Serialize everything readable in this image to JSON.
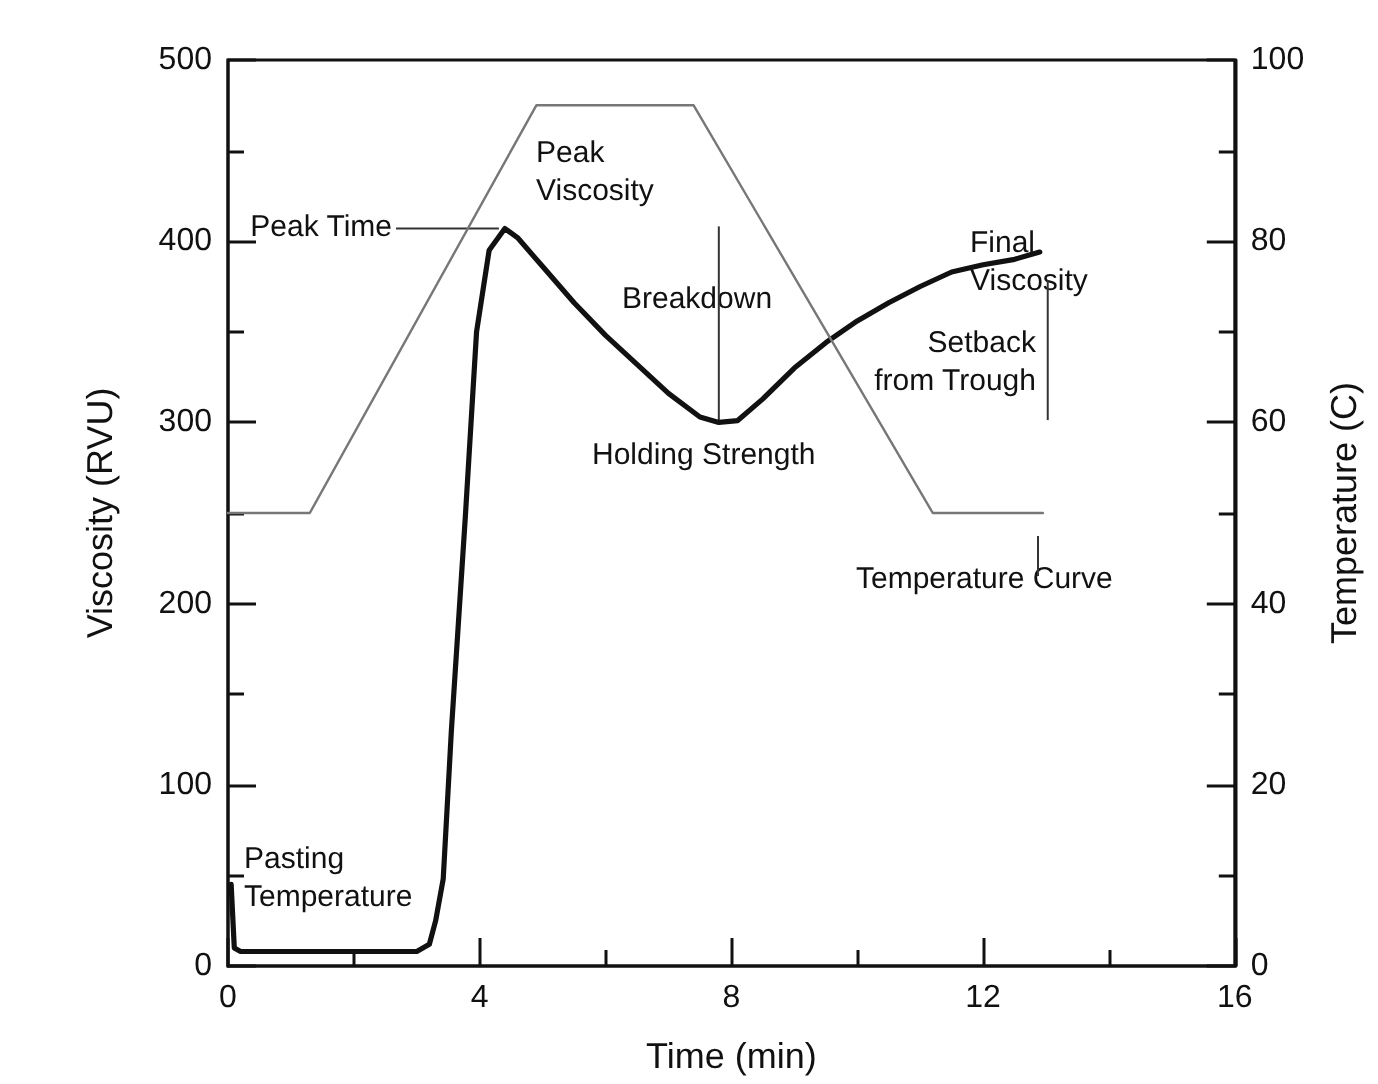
{
  "chart_data": {
    "type": "line",
    "xlabel": "Time (min)",
    "ylabel": "Viscosity (RVU)",
    "y2label": "Temperature (C)",
    "xlim": [
      0,
      16
    ],
    "xticks": [
      0,
      4,
      8,
      12,
      16
    ],
    "ylim": [
      0,
      500
    ],
    "yticks": [
      0,
      100,
      200,
      300,
      400,
      500
    ],
    "y2lim": [
      0,
      100
    ],
    "y2ticks": [
      0,
      20,
      40,
      60,
      80,
      100
    ],
    "grid": false,
    "marker": "none",
    "line_style": "solid",
    "series": [
      {
        "color": "#111111",
        "x": [
          0.05,
          0.1,
          0.2,
          1,
          2,
          3,
          3.2,
          3.3,
          3.42,
          3.55,
          3.77,
          3.95,
          4.15,
          4.4,
          4.6,
          5,
          5.5,
          6,
          6.5,
          7,
          7.5,
          7.8,
          8.1,
          8.5,
          9,
          9.5,
          10,
          10.5,
          11,
          11.5,
          12,
          12.5,
          12.9
        ],
        "values": [
          45,
          10,
          8,
          8,
          8,
          8,
          12,
          25,
          48,
          130,
          247,
          350,
          395,
          407,
          402,
          386,
          366,
          348,
          332,
          316,
          303,
          300,
          301,
          313,
          330,
          344,
          356,
          366,
          375,
          383,
          387,
          390,
          394
        ]
      },
      {
        "color": "#777777",
        "axis": "y2",
        "x": [
          0,
          1.3,
          4.9,
          7.4,
          11.2,
          12.95
        ],
        "values": [
          50,
          50,
          95,
          95,
          50,
          50
        ]
      }
    ],
    "annotations": [
      "Peak Viscosity",
      {
        "text": "Peak Time",
        "x": 4.4,
        "y": 407
      },
      "Breakdown",
      {
        "text": "Holding Strength",
        "x": 7.8,
        "y": 300
      },
      "Final Viscosity",
      {
        "text": "Setback from Trough",
        "x": 12.9,
        "y": 394
      },
      "Temperature Curve",
      "Pasting Temperature"
    ]
  }
}
